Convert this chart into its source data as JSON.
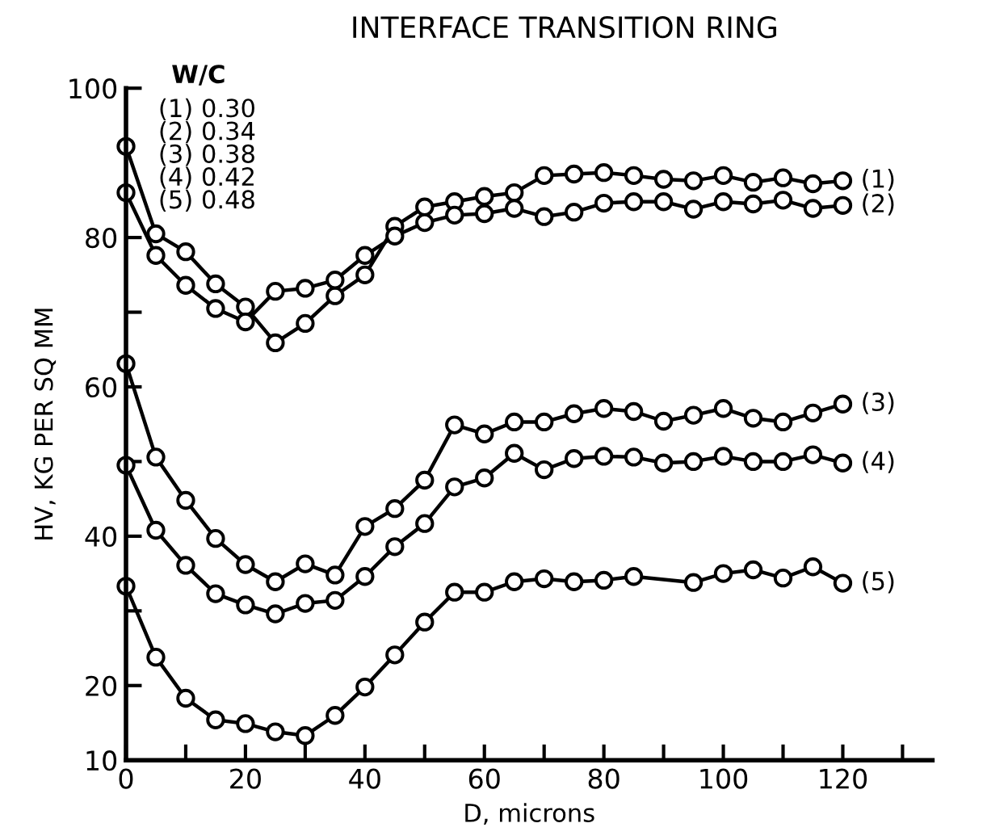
{
  "chart_data": {
    "type": "line",
    "title": "INTERFACE TRANSITION RING",
    "xlabel": "D, microns",
    "ylabel": "HV, KG PER SQ MM",
    "annotations": [
      "W/C",
      "(1) 0.30",
      "(2) 0.34",
      "(3) 0.38",
      "(4) 0.42",
      "(5) 0.48"
    ],
    "x": [
      0,
      5,
      10,
      15,
      20,
      25,
      30,
      35,
      40,
      45,
      50,
      55,
      60,
      65,
      70,
      75,
      80,
      85,
      90,
      95,
      100,
      105,
      110,
      115,
      120
    ],
    "series": [
      {
        "name": "(1)",
        "color": "#000000",
        "values": [
          92.2,
          80.5,
          78.1,
          73.8,
          70.7,
          65.9,
          68.5,
          72.2,
          75,
          81.5,
          84.1,
          84.8,
          85.5,
          86,
          88.3,
          88.5,
          88.7,
          88.3,
          87.8,
          87.6,
          88.3,
          87.4,
          88,
          87.2,
          87.6
        ]
      },
      {
        "name": "(2)",
        "color": "#000000",
        "values": [
          86,
          77.6,
          73.6,
          70.5,
          68.7,
          72.8,
          73.2,
          74.3,
          77.6,
          80.2,
          82,
          83,
          83.2,
          83.9,
          82.8,
          83.4,
          84.6,
          84.8,
          84.8,
          83.8,
          84.8,
          84.5,
          85,
          83.9,
          84.3
        ]
      },
      {
        "name": "(3)",
        "color": "#000000",
        "values": [
          63.1,
          50.6,
          44.8,
          39.7,
          36.2,
          33.9,
          36.3,
          34.8,
          41.3,
          43.7,
          47.5,
          54.9,
          53.7,
          55.3,
          55.3,
          56.4,
          57.1,
          56.7,
          55.4,
          56.2,
          57.1,
          55.8,
          55.3,
          56.5,
          57.7
        ]
      },
      {
        "name": "(4)",
        "color": "#000000",
        "values": [
          49.5,
          40.8,
          36.1,
          32.3,
          30.8,
          29.6,
          31,
          31.4,
          34.6,
          38.6,
          41.7,
          46.6,
          47.8,
          51.1,
          48.9,
          50.4,
          50.7,
          50.6,
          49.8,
          50,
          50.7,
          50,
          50,
          50.9,
          49.8
        ]
      },
      {
        "name": "(5)",
        "color": "#000000",
        "values": [
          33.3,
          23.8,
          18.3,
          15.4,
          14.9,
          13.8,
          13.3,
          16,
          19.8,
          24.1,
          28.5,
          32.5,
          32.5,
          33.9,
          34.3,
          33.9,
          34.1,
          34.6,
          null,
          33.8,
          35,
          35.5,
          34.4,
          35.9,
          33.7
        ]
      }
    ],
    "xlim": [
      0,
      135
    ],
    "ylim": [
      10,
      100
    ],
    "xticks": [
      0,
      {
        "value": 10,
        "label": null
      },
      20,
      {
        "value": 30,
        "label": null
      },
      40,
      {
        "value": 50,
        "label": null
      },
      60,
      {
        "value": 70,
        "label": null
      },
      80,
      {
        "value": 90,
        "label": null
      },
      100,
      {
        "value": 110,
        "label": null
      },
      120,
      {
        "value": 130,
        "label": null
      }
    ],
    "yticks": [
      10,
      20,
      {
        "value": 30,
        "label": null
      },
      40,
      {
        "value": 50,
        "label": null
      },
      60,
      {
        "value": 70,
        "label": null
      },
      80,
      100
    ],
    "marker": "circle",
    "line_style": "solid",
    "grid": false,
    "legend": false
  }
}
